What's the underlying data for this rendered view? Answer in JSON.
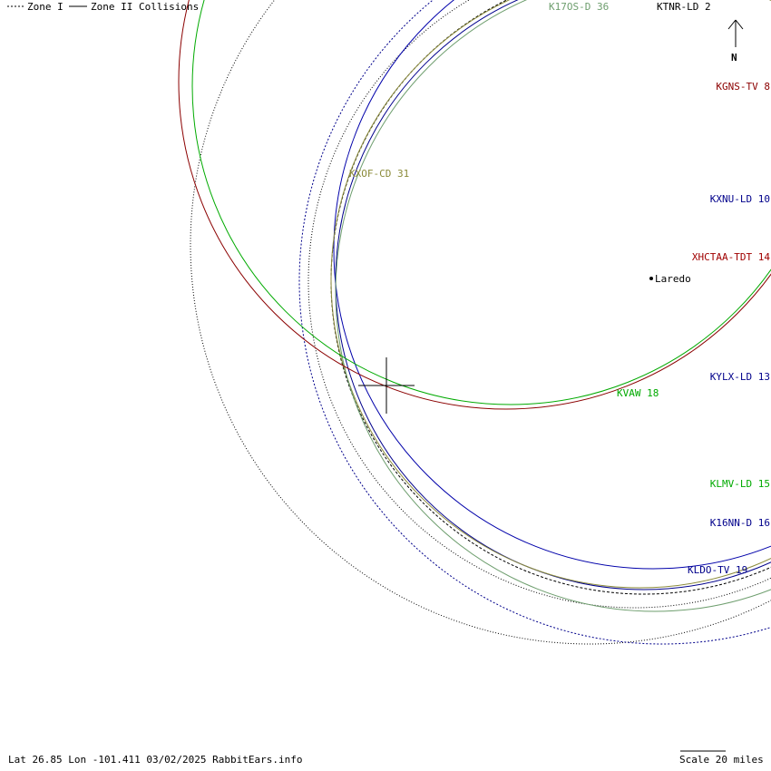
{
  "legend": {
    "zone1_label": "Zone I",
    "zone2_label": "Zone II Collisions"
  },
  "compass": {
    "label": "N"
  },
  "city": {
    "name": "Laredo"
  },
  "stations": [
    {
      "name": "K17OS-D 36",
      "color": "#6e9e6e"
    },
    {
      "name": "KTNR-LD 2",
      "color": "#000000"
    },
    {
      "name": "KGNS-TV 8",
      "color": "#8b0000"
    },
    {
      "name": "KXOF-CD 31",
      "color": "#8b8b3a"
    },
    {
      "name": "KXNU-LD 10",
      "color": "#00008b"
    },
    {
      "name": "XHCTAA-TDT 14",
      "color": "#a00000"
    },
    {
      "name": "KYLX-LD 13",
      "color": "#00008b"
    },
    {
      "name": "KVAW 18",
      "color": "#00aa00"
    },
    {
      "name": "KLMV-LD 15",
      "color": "#00aa00"
    },
    {
      "name": "K16NN-D 16",
      "color": "#00008b"
    },
    {
      "name": "KLDO-TV 19",
      "color": "#00008b"
    }
  ],
  "footer": {
    "location": "Lat 26.85 Lon -101.411 03/02/2025 RabbitEars.info",
    "scale": "Scale 20 miles"
  }
}
